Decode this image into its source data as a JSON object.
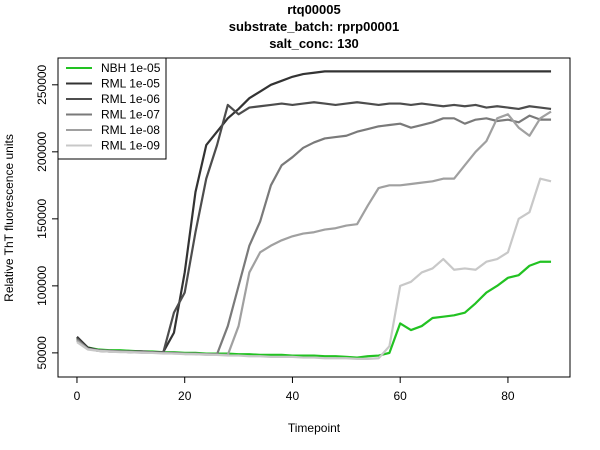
{
  "chart_data": {
    "type": "line",
    "title": [
      "rtq00005",
      "substrate_batch: rprp00001",
      "salt_conc: 130"
    ],
    "x_label": "Timepoint",
    "y_label": "Relative ThT fluorescence units",
    "x": [
      0,
      2,
      4,
      6,
      8,
      10,
      12,
      14,
      16,
      18,
      20,
      22,
      24,
      26,
      28,
      30,
      32,
      34,
      36,
      38,
      40,
      42,
      44,
      46,
      48,
      50,
      52,
      54,
      56,
      58,
      60,
      62,
      64,
      66,
      68,
      70,
      72,
      74,
      76,
      78,
      80,
      82,
      84,
      86,
      88
    ],
    "series": [
      {
        "name": "NBH 1e-05",
        "color": "#22c222",
        "values": [
          61000,
          54000,
          52500,
          52000,
          52000,
          51500,
          51000,
          51000,
          50500,
          50500,
          50000,
          50000,
          49500,
          49500,
          49500,
          49000,
          49000,
          48500,
          48500,
          48500,
          48000,
          48000,
          48000,
          47500,
          47500,
          47000,
          46500,
          47500,
          48000,
          50000,
          72000,
          67000,
          70000,
          76000,
          77000,
          78000,
          80000,
          87000,
          95000,
          100000,
          106000,
          108000,
          115000,
          118000,
          118000
        ]
      },
      {
        "name": "RML 1e-05",
        "color": "#333333",
        "values": [
          62000,
          54000,
          52000,
          51500,
          51000,
          51000,
          51000,
          50500,
          50500,
          65000,
          110000,
          170000,
          205000,
          215000,
          225000,
          232000,
          240000,
          245000,
          250000,
          253000,
          256000,
          258000,
          259000,
          260000,
          260000,
          260000,
          260000,
          260000,
          260000,
          260000,
          260000,
          260000,
          260000,
          260000,
          260000,
          260000,
          260000,
          260000,
          260000,
          260000,
          260000,
          260000,
          260000,
          260000,
          260000
        ]
      },
      {
        "name": "RML 1e-06",
        "color": "#4d4d4d",
        "values": [
          61000,
          53000,
          51500,
          51000,
          51000,
          50500,
          50500,
          50000,
          50000,
          80000,
          95000,
          140000,
          180000,
          205000,
          235000,
          228000,
          233000,
          234000,
          235000,
          236000,
          235000,
          236000,
          237000,
          236000,
          235000,
          236000,
          237000,
          236000,
          235000,
          236000,
          236000,
          235000,
          236000,
          235000,
          234000,
          235000,
          234000,
          235000,
          233000,
          234000,
          233000,
          232000,
          234000,
          233000,
          232000
        ]
      },
      {
        "name": "RML 1e-07",
        "color": "#7a7a7a",
        "values": [
          60000,
          53000,
          52000,
          51500,
          51000,
          51000,
          50500,
          50500,
          50000,
          50000,
          49500,
          49500,
          49000,
          49000,
          70000,
          100000,
          130000,
          148000,
          175000,
          190000,
          196000,
          203000,
          207000,
          210000,
          211000,
          212000,
          215000,
          217000,
          219000,
          220000,
          221000,
          218000,
          220000,
          222000,
          225000,
          225000,
          221000,
          224000,
          225000,
          223000,
          224000,
          222000,
          227000,
          224000,
          224000
        ]
      },
      {
        "name": "RML 1e-08",
        "color": "#a0a0a0",
        "values": [
          59000,
          53000,
          51500,
          51000,
          51000,
          50500,
          50500,
          50000,
          50000,
          49500,
          49500,
          49000,
          49000,
          48500,
          48500,
          70000,
          110000,
          125000,
          130000,
          134000,
          137000,
          139000,
          140000,
          142000,
          143000,
          145000,
          146000,
          160000,
          173000,
          175000,
          175000,
          176000,
          177000,
          178000,
          180000,
          180000,
          190000,
          200000,
          208000,
          225000,
          228000,
          218000,
          212000,
          225000,
          230000
        ]
      },
      {
        "name": "RML 1e-09",
        "color": "#c8c8c8",
        "values": [
          58000,
          52500,
          51500,
          51000,
          50500,
          50500,
          50000,
          50000,
          49500,
          49500,
          49000,
          49000,
          48500,
          48500,
          48000,
          48000,
          47500,
          47500,
          47000,
          47000,
          47000,
          46500,
          46500,
          46000,
          46000,
          46000,
          45500,
          45500,
          46000,
          55000,
          100000,
          103000,
          110000,
          113000,
          120000,
          112000,
          113000,
          112000,
          118000,
          120000,
          125000,
          150000,
          155000,
          180000,
          178000
        ]
      }
    ],
    "xlim": [
      -3.52,
      91.52
    ],
    "ylim": [
      32000,
      270000
    ],
    "xticks": [
      0,
      20,
      40,
      60,
      80
    ],
    "yticks": [
      50000,
      100000,
      150000,
      200000,
      250000
    ],
    "legend": "topleft"
  }
}
